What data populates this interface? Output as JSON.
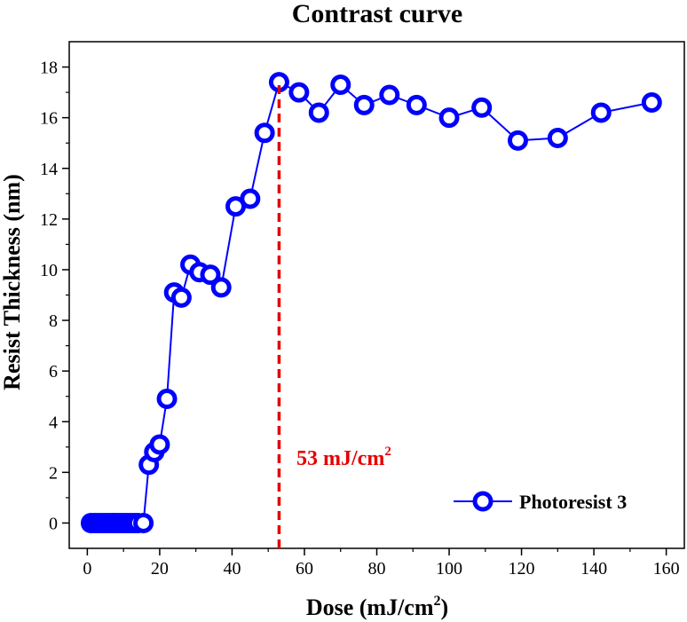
{
  "chart_data": {
    "type": "line",
    "title": "Contrast curve",
    "xlabel": {
      "text": "Dose (mJ/cm",
      "sup": "2",
      "close": ")"
    },
    "ylabel": "Resist Thickness (nm)",
    "xlim": [
      -5,
      165
    ],
    "ylim": [
      -1.0,
      19.0
    ],
    "xticks": [
      0,
      20,
      40,
      60,
      80,
      100,
      120,
      140,
      160
    ],
    "yticks": [
      0,
      2,
      4,
      6,
      8,
      10,
      12,
      14,
      16,
      18
    ],
    "series": [
      {
        "name": "Photoresist 3",
        "color": "#0000ff",
        "x": [
          1,
          2,
          3,
          4,
          5,
          6,
          7,
          8,
          9,
          10,
          11,
          12,
          13,
          14,
          15.5,
          17,
          18.5,
          20,
          22,
          24,
          26,
          28.5,
          31,
          34,
          37,
          41,
          45,
          49,
          53,
          58.5,
          64,
          70,
          76.5,
          83.5,
          91,
          100,
          109,
          119,
          130,
          142,
          156
        ],
        "y": [
          0,
          0,
          0,
          0,
          0,
          0,
          0,
          0,
          0,
          0,
          0,
          0,
          0,
          0,
          0,
          2.3,
          2.8,
          3.1,
          4.9,
          9.1,
          8.9,
          10.2,
          9.9,
          9.8,
          9.3,
          12.5,
          12.8,
          15.4,
          17.4,
          17.0,
          16.2,
          17.3,
          16.5,
          16.9,
          16.5,
          16.0,
          16.4,
          15.1,
          15.2,
          16.2,
          16.6
        ]
      }
    ],
    "annotation": {
      "x": 53,
      "text": "53 mJ/cm",
      "sup": "2",
      "color": "#e60000"
    },
    "legend": {
      "position": "bottom-right"
    }
  }
}
